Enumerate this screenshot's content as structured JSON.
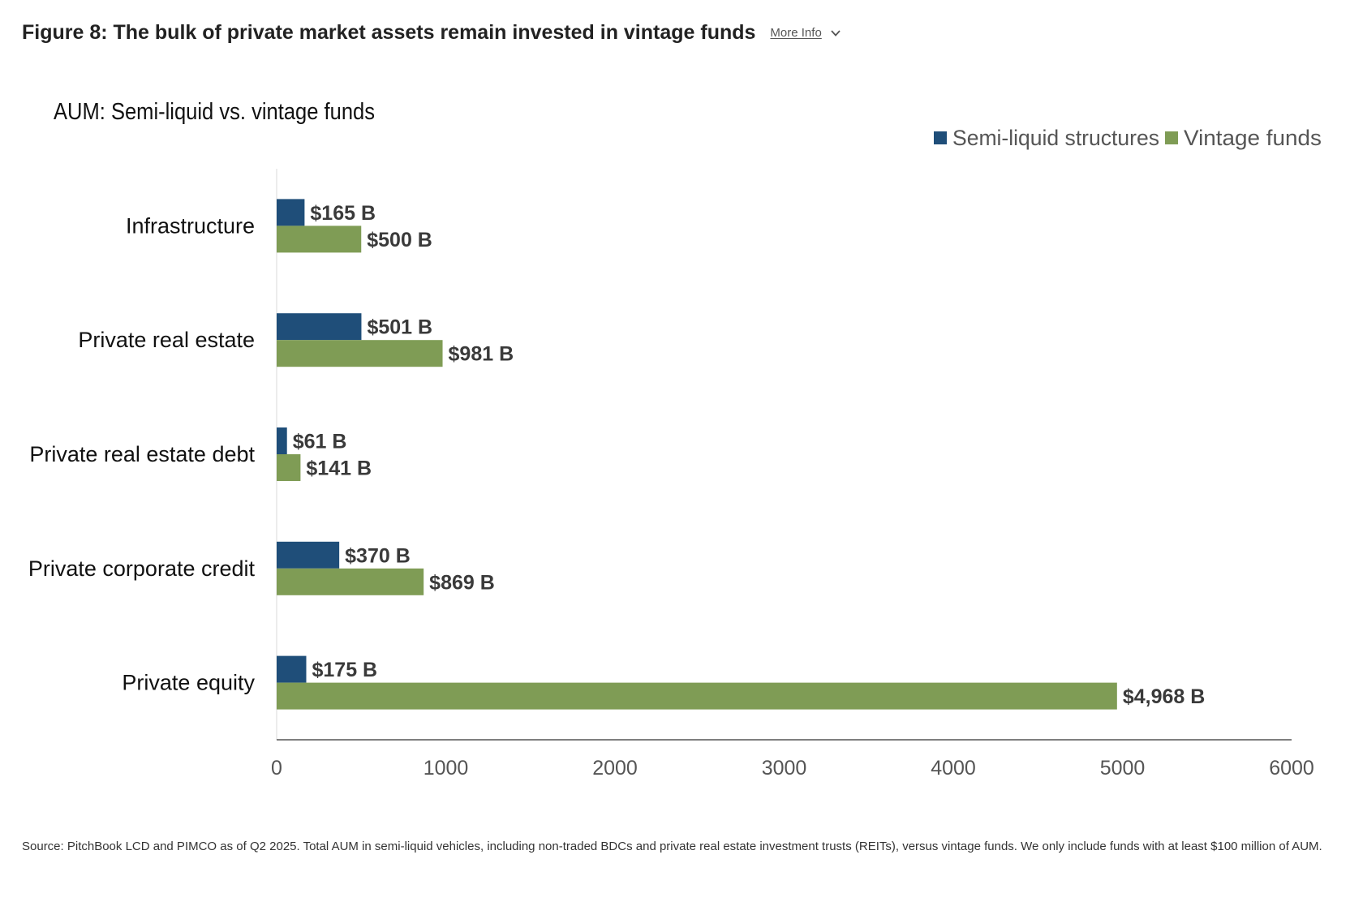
{
  "header": {
    "title": "Figure 8: The bulk of private market assets remain invested in vintage funds",
    "more_info_label": "More Info",
    "more_info_icon": "chevron-down-icon"
  },
  "chart_data": {
    "type": "bar",
    "orientation": "horizontal",
    "title": "AUM: Semi-liquid vs. vintage funds",
    "xlabel": "",
    "ylabel": "",
    "categories": [
      "Infrastructure",
      "Private real estate",
      "Private real estate debt",
      "Private corporate credit",
      "Private equity"
    ],
    "series": [
      {
        "name": "Semi-liquid structures",
        "color": "#1f4e79",
        "values": [
          165,
          501,
          61,
          370,
          175
        ],
        "labels": [
          "$165 B",
          "$501 B",
          "$61 B",
          "$370 B",
          "$175 B"
        ]
      },
      {
        "name": "Vintage funds",
        "color": "#7f9c55",
        "values": [
          500,
          981,
          141,
          869,
          4968
        ],
        "labels": [
          "$500 B",
          "$981 B",
          "$141 B",
          "$869 B",
          "$4,968 B"
        ]
      }
    ],
    "xlim": [
      0,
      6000
    ],
    "xticks": [
      "0",
      "1000",
      "2000",
      "3000",
      "4000",
      "5000",
      "6000"
    ],
    "grid": false,
    "legend_position": "top-right"
  },
  "footer": {
    "source": "Source: PitchBook LCD and PIMCO as of Q2 2025. Total AUM in semi-liquid vehicles, including non-traded BDCs and private real estate investment trusts (REITs), versus vintage funds. We only include funds with at least $100 million of AUM."
  }
}
